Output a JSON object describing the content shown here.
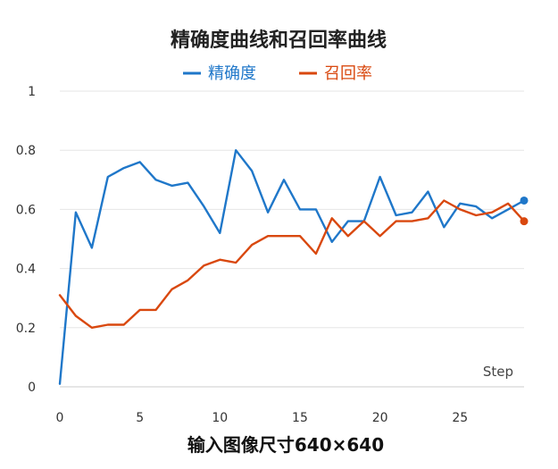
{
  "chart_data": {
    "type": "line",
    "title": "精确度曲线和召回率曲线",
    "caption": "输入图像尺寸640×640",
    "xlabel": "Step",
    "ylabel": "",
    "xlim": [
      0,
      29
    ],
    "ylim": [
      0,
      1
    ],
    "x_ticks": [
      "0",
      "5",
      "10",
      "15",
      "20",
      "25"
    ],
    "y_ticks": [
      "0",
      "0.2",
      "0.4",
      "0.6",
      "0.8",
      "1"
    ],
    "grid": true,
    "legend_position": "top-center",
    "series": [
      {
        "name": "精确度",
        "color": "#1f77c9",
        "x": [
          0,
          1,
          2,
          3,
          4,
          5,
          6,
          7,
          8,
          9,
          10,
          11,
          12,
          13,
          14,
          15,
          16,
          17,
          18,
          19,
          20,
          21,
          22,
          23,
          24,
          25,
          26,
          27,
          28,
          29
        ],
        "values": [
          0.01,
          0.59,
          0.47,
          0.71,
          0.74,
          0.76,
          0.7,
          0.68,
          0.69,
          0.61,
          0.52,
          0.8,
          0.73,
          0.59,
          0.7,
          0.6,
          0.6,
          0.49,
          0.56,
          0.56,
          0.71,
          0.58,
          0.59,
          0.66,
          0.54,
          0.62,
          0.61,
          0.57,
          0.6,
          0.63
        ]
      },
      {
        "name": "召回率",
        "color": "#d9480f",
        "x": [
          0,
          1,
          2,
          3,
          4,
          5,
          6,
          7,
          8,
          9,
          10,
          11,
          12,
          13,
          14,
          15,
          16,
          17,
          18,
          19,
          20,
          21,
          22,
          23,
          24,
          25,
          26,
          27,
          28,
          29
        ],
        "values": [
          0.31,
          0.24,
          0.2,
          0.21,
          0.21,
          0.26,
          0.26,
          0.33,
          0.36,
          0.41,
          0.43,
          0.42,
          0.48,
          0.51,
          0.51,
          0.51,
          0.45,
          0.57,
          0.51,
          0.56,
          0.51,
          0.56,
          0.56,
          0.57,
          0.63,
          0.6,
          0.58,
          0.59,
          0.62,
          0.56
        ]
      }
    ]
  }
}
